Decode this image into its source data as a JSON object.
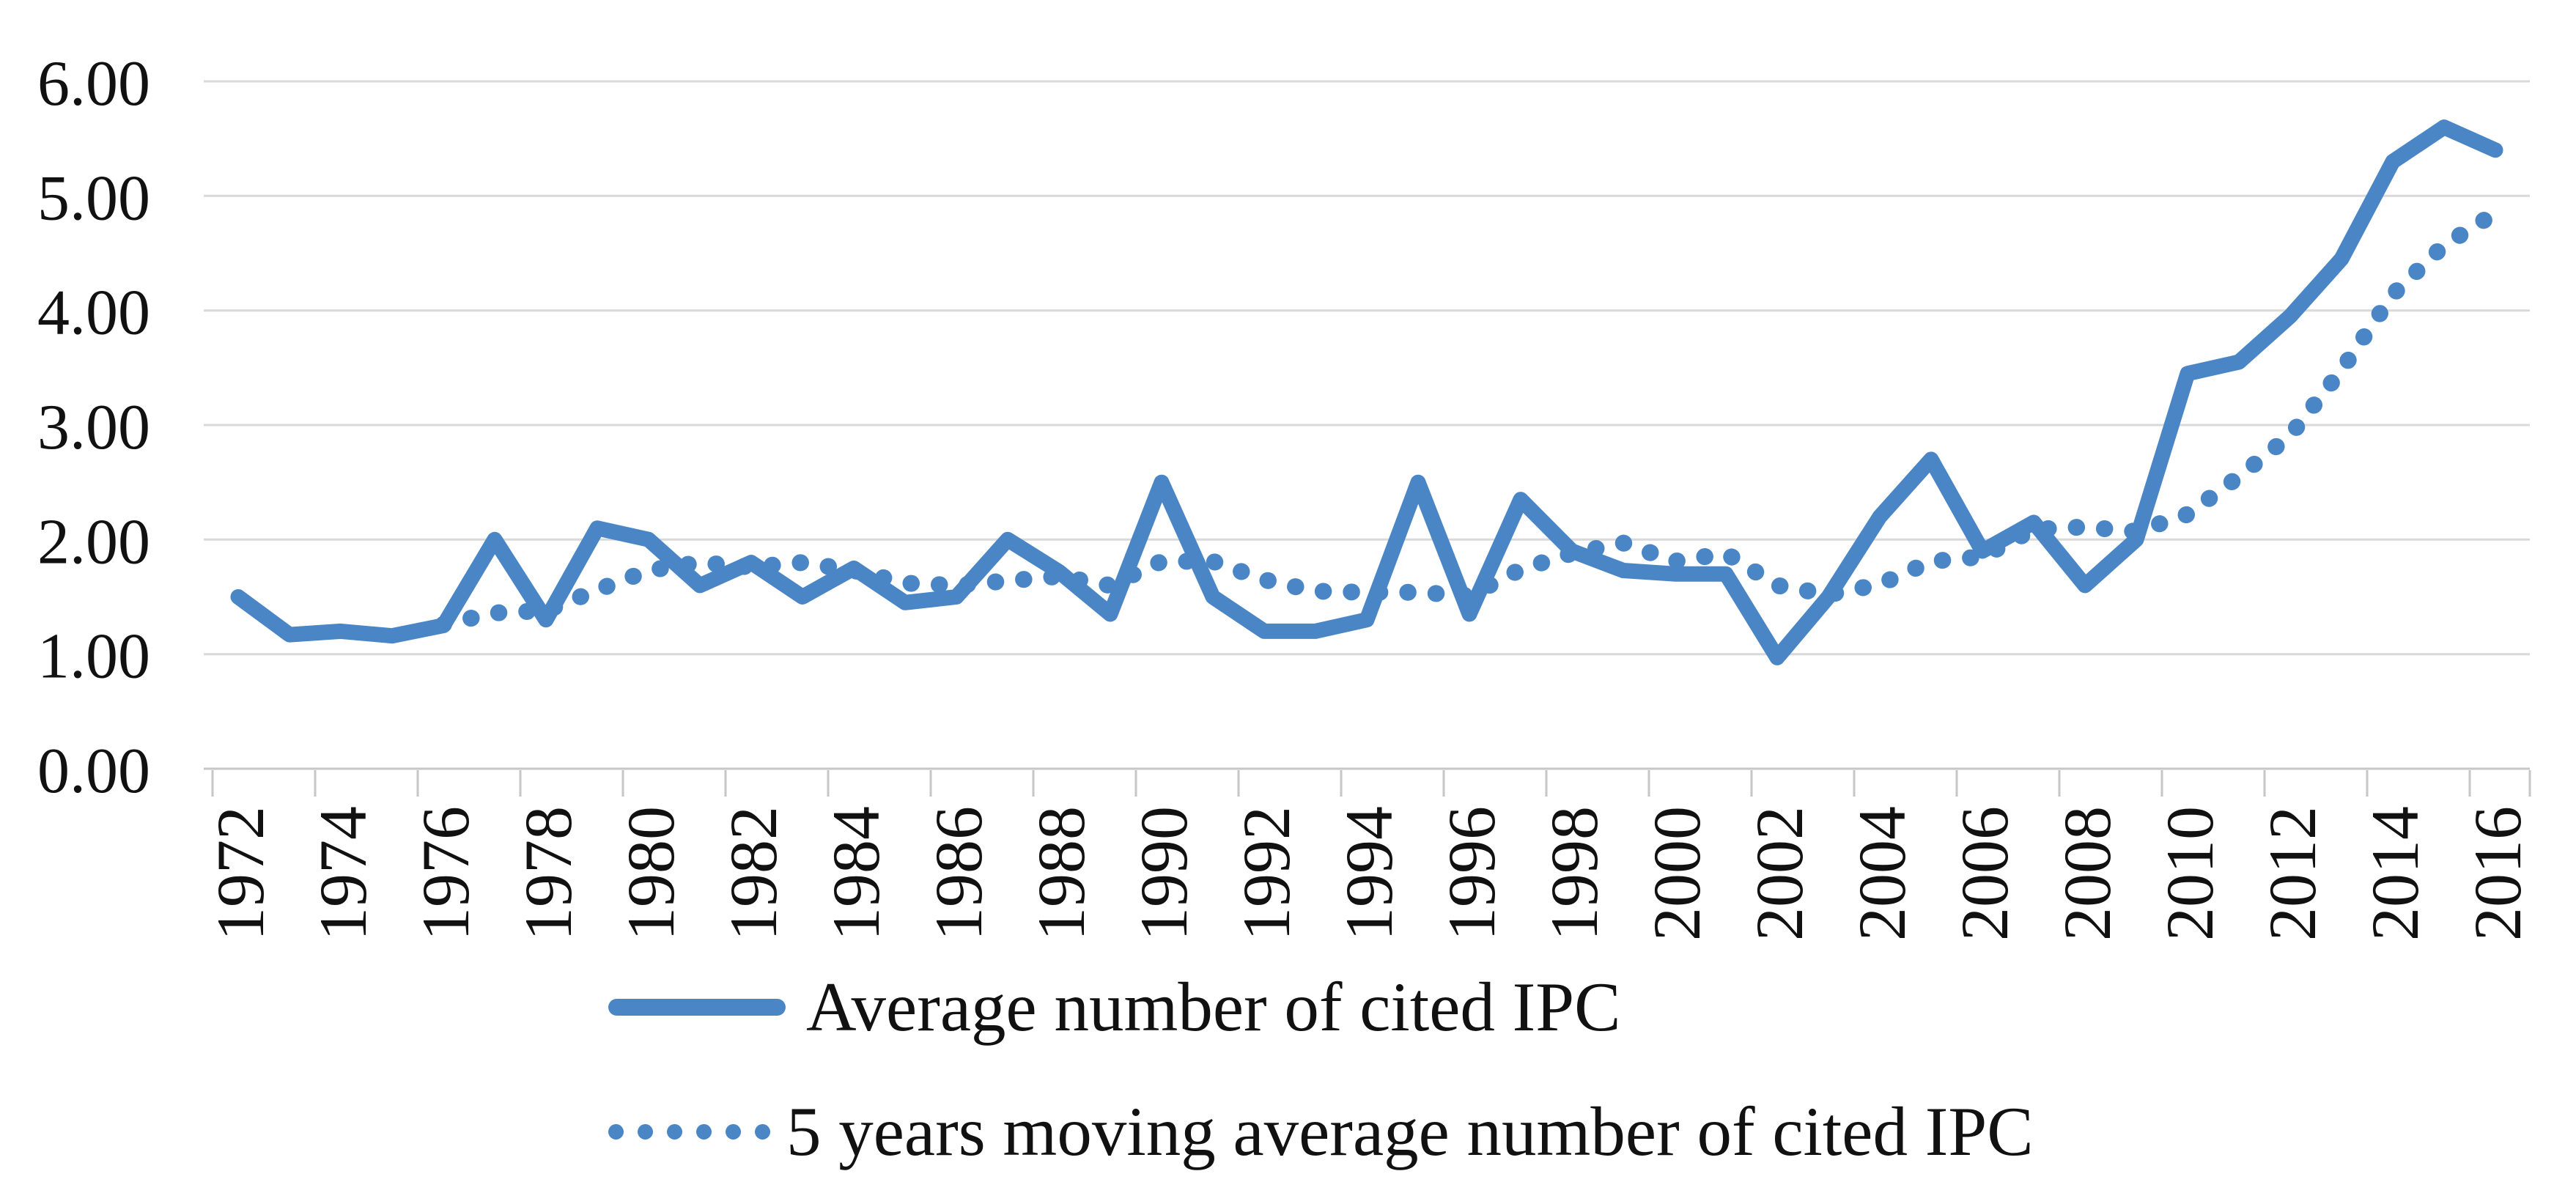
{
  "chart_data": {
    "type": "line",
    "title": "",
    "xlabel": "",
    "ylabel": "",
    "ylim": [
      0,
      6
    ],
    "grid": true,
    "legend_position": "bottom-left",
    "y_tick_labels": [
      "0.00",
      "1.00",
      "2.00",
      "3.00",
      "4.00",
      "5.00",
      "6.00"
    ],
    "x_tick_labels": [
      "1972",
      "1974",
      "1976",
      "1978",
      "1980",
      "1982",
      "1984",
      "1986",
      "1988",
      "1990",
      "1992",
      "1994",
      "1996",
      "1998",
      "2000",
      "2002",
      "2004",
      "2006",
      "2008",
      "2010",
      "2012",
      "2014",
      "2016"
    ],
    "x_tick_interval": 2,
    "x": [
      1972,
      1973,
      1974,
      1975,
      1976,
      1977,
      1978,
      1979,
      1980,
      1981,
      1982,
      1983,
      1984,
      1985,
      1986,
      1987,
      1988,
      1989,
      1990,
      1991,
      1992,
      1993,
      1994,
      1995,
      1996,
      1997,
      1998,
      1999,
      2000,
      2001,
      2002,
      2003,
      2004,
      2005,
      2006,
      2007,
      2008,
      2009,
      2010,
      2011,
      2012,
      2013,
      2014,
      2015,
      2016
    ],
    "series": [
      {
        "name": "Average number of cited IPC",
        "line_style": "solid",
        "first_year": 1972,
        "values": [
          1.5,
          1.17,
          1.2,
          1.16,
          1.25,
          2.0,
          1.3,
          2.1,
          2.0,
          1.6,
          1.8,
          1.5,
          1.75,
          1.45,
          1.5,
          2.0,
          1.72,
          1.35,
          2.5,
          1.5,
          1.2,
          1.2,
          1.3,
          2.5,
          1.35,
          2.35,
          1.9,
          1.73,
          1.7,
          1.7,
          0.97,
          1.5,
          2.2,
          2.7,
          1.9,
          2.15,
          1.6,
          2.0,
          3.45,
          3.55,
          3.95,
          4.45,
          5.3,
          5.6,
          5.4
        ]
      },
      {
        "name": "5 years moving average number of cited IPC",
        "line_style": "dotted",
        "first_year": 1976,
        "values": [
          1.26,
          1.36,
          1.38,
          1.56,
          1.73,
          1.8,
          1.76,
          1.8,
          1.73,
          1.62,
          1.6,
          1.64,
          1.68,
          1.6,
          1.81,
          1.81,
          1.65,
          1.55,
          1.54,
          1.54,
          1.51,
          1.74,
          1.88,
          1.97,
          1.81,
          1.88,
          1.6,
          1.52,
          1.61,
          1.81,
          1.85,
          2.09,
          2.11,
          2.07,
          2.22,
          2.55,
          2.91,
          3.48,
          4.14,
          4.57,
          4.85
        ]
      }
    ],
    "colors": {
      "series": "#4a86c6",
      "gridline": "#d9d9d9",
      "axis": "#c6c6c6",
      "text": "#111111",
      "background": "#ffffff"
    }
  },
  "legend": {
    "items": [
      {
        "label": "Average number of cited IPC",
        "swatch": "solid-line"
      },
      {
        "label": "5 years moving average number of cited IPC",
        "swatch": "dotted-line"
      }
    ]
  }
}
